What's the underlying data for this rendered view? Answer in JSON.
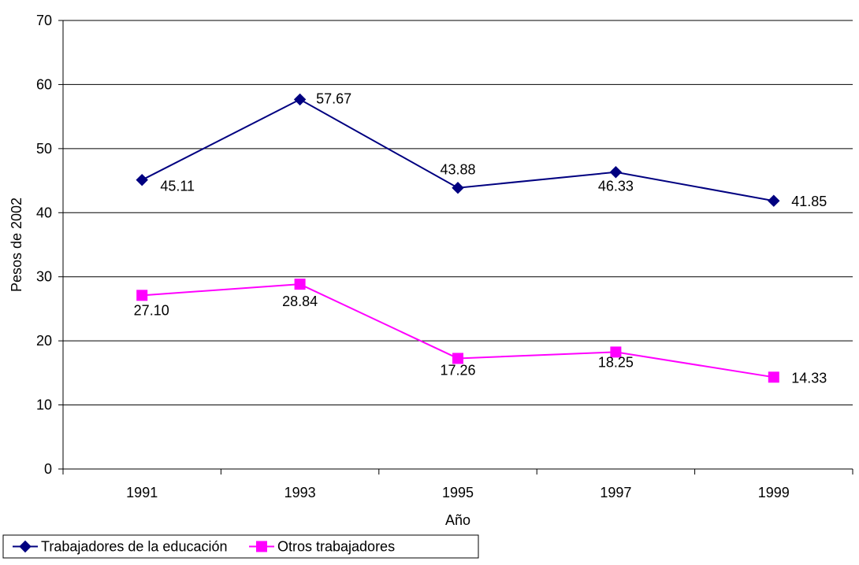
{
  "chart_data": {
    "type": "line",
    "title": "",
    "xlabel": "Año",
    "ylabel": "Pesos de 2002",
    "categories": [
      "1991",
      "1993",
      "1995",
      "1997",
      "1999"
    ],
    "ylim": [
      0,
      70
    ],
    "yticks": [
      0,
      10,
      20,
      30,
      40,
      50,
      60,
      70
    ],
    "grid": true,
    "legend_position": "bottom-left",
    "series": [
      {
        "name": "Trabajadores de la educación",
        "values": [
          45.11,
          57.67,
          43.88,
          46.33,
          41.85
        ],
        "labels": [
          "45.11",
          "57.67",
          "43.88",
          "46.33",
          "41.85"
        ],
        "color": "#000080",
        "marker": "diamond"
      },
      {
        "name": "Otros trabajadores",
        "values": [
          27.1,
          28.84,
          17.26,
          18.25,
          14.33
        ],
        "labels": [
          "27.10",
          "28.84",
          "17.26",
          "18.25",
          "14.33"
        ],
        "color": "#FF00FF",
        "marker": "square"
      }
    ]
  }
}
